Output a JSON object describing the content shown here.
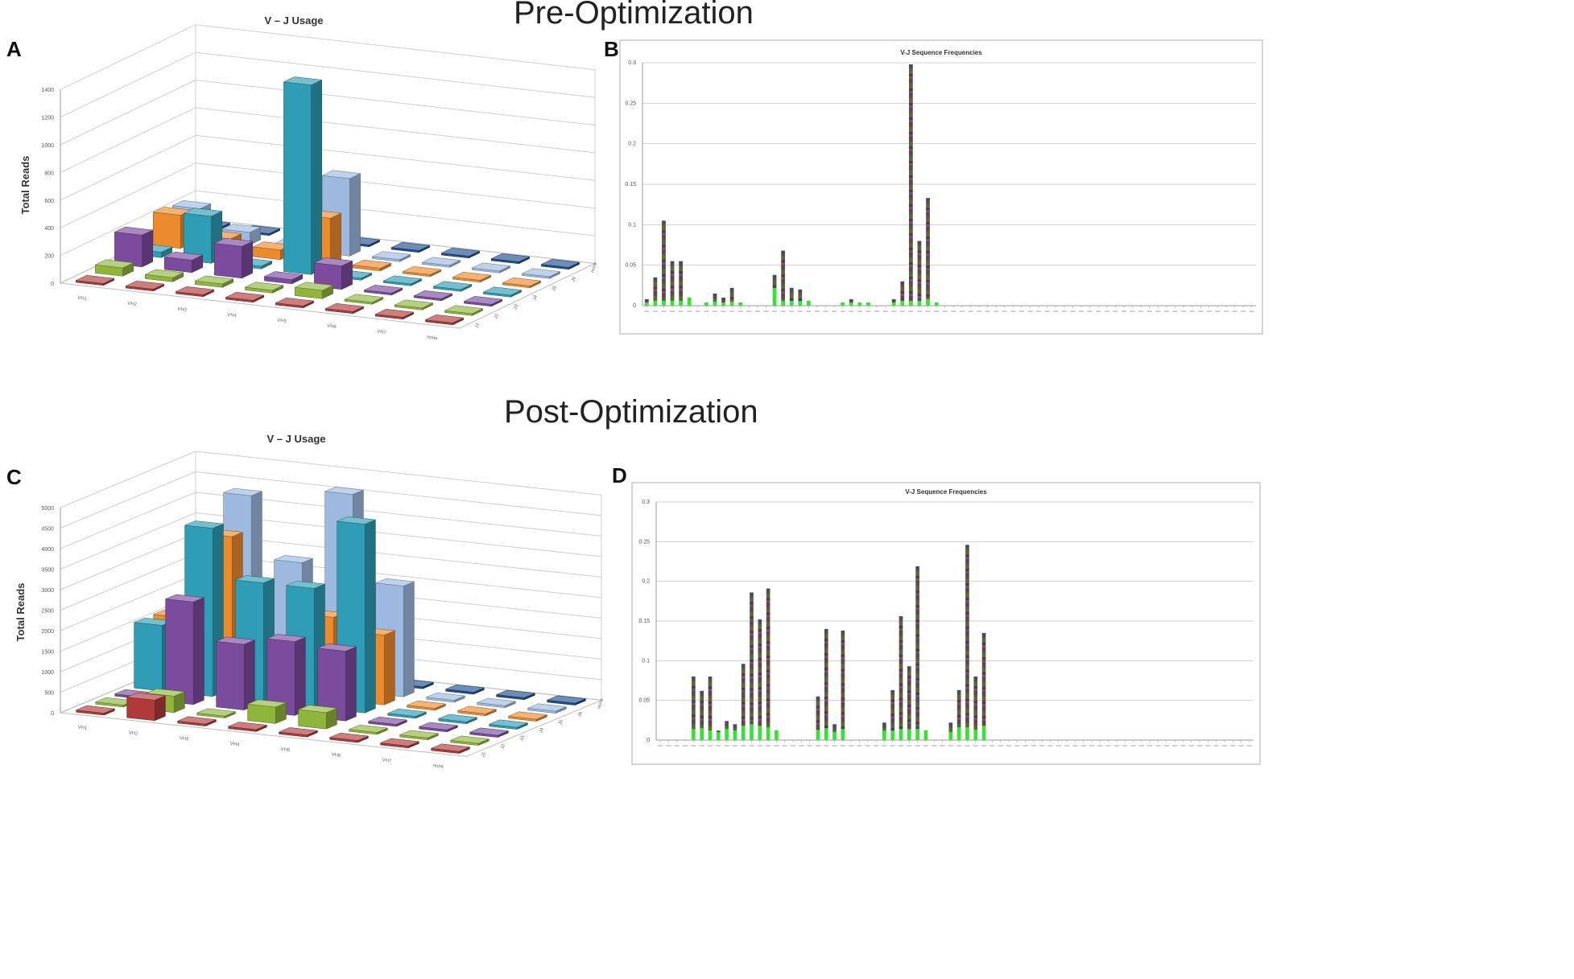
{
  "figure": {
    "pre_title": "Pre-Optimization",
    "post_title": "Post-Optimization"
  },
  "chart_data": [
    {
      "panel": "A",
      "type": "bar",
      "subtype": "3d-bar",
      "title": "V – J Usage",
      "ylabel": "Total Reads",
      "yticks": [
        "0",
        "200",
        "400",
        "600",
        "800",
        "1000",
        "1200",
        "1400"
      ],
      "ylim": [
        0,
        1400
      ],
      "categories": [
        "VH1",
        "VH2",
        "VH3",
        "VH4",
        "VH5",
        "VH6",
        "VH7",
        "none"
      ],
      "depth_labels": [
        "J1",
        "J2",
        "J3",
        "J4",
        "J5",
        "J6",
        "none"
      ],
      "series": [
        {
          "name": "J1",
          "color": "#b03a3a",
          "values": [
            5,
            5,
            5,
            5,
            5,
            5,
            5,
            5
          ]
        },
        {
          "name": "J2",
          "color": "#8fb53b",
          "values": [
            60,
            30,
            25,
            20,
            60,
            10,
            10,
            5
          ]
        },
        {
          "name": "J3",
          "color": "#7b4b9e",
          "values": [
            230,
            90,
            230,
            30,
            170,
            5,
            5,
            5
          ]
        },
        {
          "name": "J4",
          "color": "#2e9db5",
          "values": [
            40,
            340,
            20,
            1370,
            10,
            5,
            5,
            5
          ]
        },
        {
          "name": "J5",
          "color": "#ec8a2e",
          "values": [
            240,
            110,
            70,
            340,
            20,
            10,
            5,
            5
          ]
        },
        {
          "name": "J6",
          "color": "#9db9e0",
          "values": [
            220,
            90,
            20,
            560,
            15,
            10,
            5,
            5
          ]
        },
        {
          "name": "none",
          "color": "#1f4f8f",
          "values": [
            10,
            5,
            5,
            5,
            5,
            5,
            5,
            5
          ]
        }
      ]
    },
    {
      "panel": "B",
      "type": "bar",
      "subtype": "stacked",
      "title": "V-J Sequence Frequencies",
      "yticks": [
        "0",
        "0.05",
        "0.1",
        "0.15",
        "0.2",
        "0.25",
        "0.3"
      ],
      "ylim": [
        0,
        0.3
      ],
      "n_categories": 72,
      "values": [
        0.008,
        0.035,
        0.105,
        0.055,
        0.055,
        0.01,
        0,
        0.004,
        0.015,
        0.01,
        0.022,
        0.004,
        0,
        0,
        0,
        0.038,
        0.068,
        0.022,
        0.02,
        0.006,
        0,
        0,
        0,
        0.004,
        0.008,
        0.004,
        0.004,
        0,
        0,
        0.008,
        0.03,
        0.298,
        0.08,
        0.133,
        0.004,
        0,
        0,
        0,
        0,
        0,
        0,
        0,
        0,
        0,
        0,
        0,
        0,
        0,
        0,
        0,
        0,
        0,
        0,
        0,
        0,
        0,
        0,
        0,
        0,
        0,
        0,
        0,
        0,
        0,
        0,
        0,
        0,
        0,
        0,
        0,
        0,
        0
      ],
      "base_values": [
        0.004,
        0.006,
        0.006,
        0.006,
        0.006,
        0.01,
        0,
        0.004,
        0.005,
        0.004,
        0.005,
        0.004,
        0,
        0,
        0,
        0.022,
        0.006,
        0.006,
        0.006,
        0.006,
        0,
        0,
        0,
        0.004,
        0.004,
        0.004,
        0.004,
        0,
        0,
        0.004,
        0.006,
        0.006,
        0.006,
        0.008,
        0.004,
        0,
        0,
        0,
        0,
        0,
        0,
        0,
        0,
        0,
        0,
        0,
        0,
        0,
        0,
        0,
        0,
        0,
        0,
        0,
        0,
        0,
        0,
        0,
        0,
        0,
        0,
        0,
        0,
        0,
        0,
        0,
        0,
        0,
        0,
        0,
        0,
        0
      ]
    },
    {
      "panel": "C",
      "type": "bar",
      "subtype": "3d-bar",
      "title": "V – J Usage",
      "ylabel": "Total Reads",
      "yticks": [
        "0",
        "500",
        "1000",
        "1500",
        "2000",
        "2500",
        "3000",
        "3500",
        "4000",
        "4500",
        "5000"
      ],
      "ylim": [
        0,
        5000
      ],
      "categories": [
        "VH1",
        "VH2",
        "VH3",
        "VH4",
        "VH5",
        "VH6",
        "VH7",
        "none"
      ],
      "depth_labels": [
        "J1",
        "J2",
        "J3",
        "J4",
        "J5",
        "J6",
        "none"
      ],
      "series": [
        {
          "name": "J1",
          "color": "#b03a3a",
          "values": [
            10,
            500,
            10,
            10,
            10,
            10,
            10,
            10
          ]
        },
        {
          "name": "J2",
          "color": "#8fb53b",
          "values": [
            40,
            400,
            30,
            400,
            400,
            20,
            20,
            10
          ]
        },
        {
          "name": "J3",
          "color": "#7b4b9e",
          "values": [
            40,
            2500,
            1600,
            1800,
            1700,
            30,
            30,
            20
          ]
        },
        {
          "name": "J4",
          "color": "#2e9db5",
          "values": [
            1600,
            4100,
            2900,
            2900,
            4600,
            30,
            20,
            20
          ]
        },
        {
          "name": "J5",
          "color": "#ec8a2e",
          "values": [
            1600,
            3700,
            650,
            2000,
            1700,
            40,
            30,
            20
          ]
        },
        {
          "name": "J6",
          "color": "#9db9e0",
          "values": [
            1500,
            4500,
            3000,
            4800,
            2700,
            40,
            30,
            20
          ]
        },
        {
          "name": "none",
          "color": "#1f4f8f",
          "values": [
            20,
            20,
            20,
            20,
            20,
            20,
            20,
            20
          ]
        }
      ]
    },
    {
      "panel": "D",
      "type": "bar",
      "subtype": "stacked",
      "title": "V-J Sequence Frequencies",
      "yticks": [
        "0",
        "0.05",
        "0.1",
        "0.15",
        "0.2",
        "0.25",
        "0.3"
      ],
      "ylim": [
        0,
        0.3
      ],
      "n_categories": 72,
      "values": [
        0,
        0,
        0,
        0,
        0.08,
        0.062,
        0.08,
        0.012,
        0.024,
        0.02,
        0.096,
        0.186,
        0.152,
        0.191,
        0.012,
        0,
        0,
        0,
        0,
        0.055,
        0.14,
        0.02,
        0.138,
        0,
        0,
        0,
        0,
        0.022,
        0.063,
        0.156,
        0.093,
        0.219,
        0.012,
        0,
        0,
        0.022,
        0.063,
        0.246,
        0.08,
        0.135,
        0,
        0,
        0,
        0,
        0,
        0,
        0,
        0,
        0,
        0,
        0,
        0,
        0,
        0,
        0,
        0,
        0,
        0,
        0,
        0,
        0,
        0,
        0,
        0,
        0,
        0,
        0,
        0,
        0,
        0,
        0,
        0
      ],
      "base_values": [
        0,
        0,
        0,
        0,
        0.014,
        0.015,
        0.012,
        0.01,
        0.014,
        0.012,
        0.018,
        0.02,
        0.018,
        0.016,
        0.012,
        0,
        0,
        0,
        0,
        0.013,
        0.015,
        0.01,
        0.014,
        0,
        0,
        0,
        0,
        0.012,
        0.012,
        0.014,
        0.014,
        0.014,
        0.012,
        0,
        0,
        0.01,
        0.016,
        0.016,
        0.013,
        0.018,
        0,
        0,
        0,
        0,
        0,
        0,
        0,
        0,
        0,
        0,
        0,
        0,
        0,
        0,
        0,
        0,
        0,
        0,
        0,
        0,
        0,
        0,
        0,
        0,
        0,
        0,
        0,
        0,
        0,
        0,
        0,
        0
      ]
    }
  ]
}
